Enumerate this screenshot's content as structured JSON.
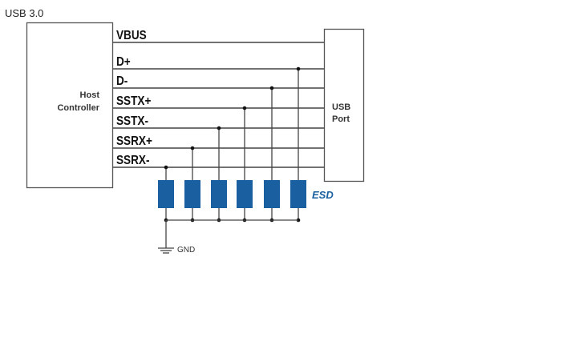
{
  "title": "USB 3.0",
  "host_label": [
    "Host",
    "Controller"
  ],
  "port_label": [
    "USB",
    "Port"
  ],
  "signals": [
    "VBUS",
    "D+",
    "D-",
    "SSTX+",
    "SSTX-",
    "SSRX+",
    "SSRX-"
  ],
  "esd_label": "ESD",
  "gnd_label": "GND",
  "colors": {
    "esd": "#1a5fa0",
    "line": "#444444"
  }
}
